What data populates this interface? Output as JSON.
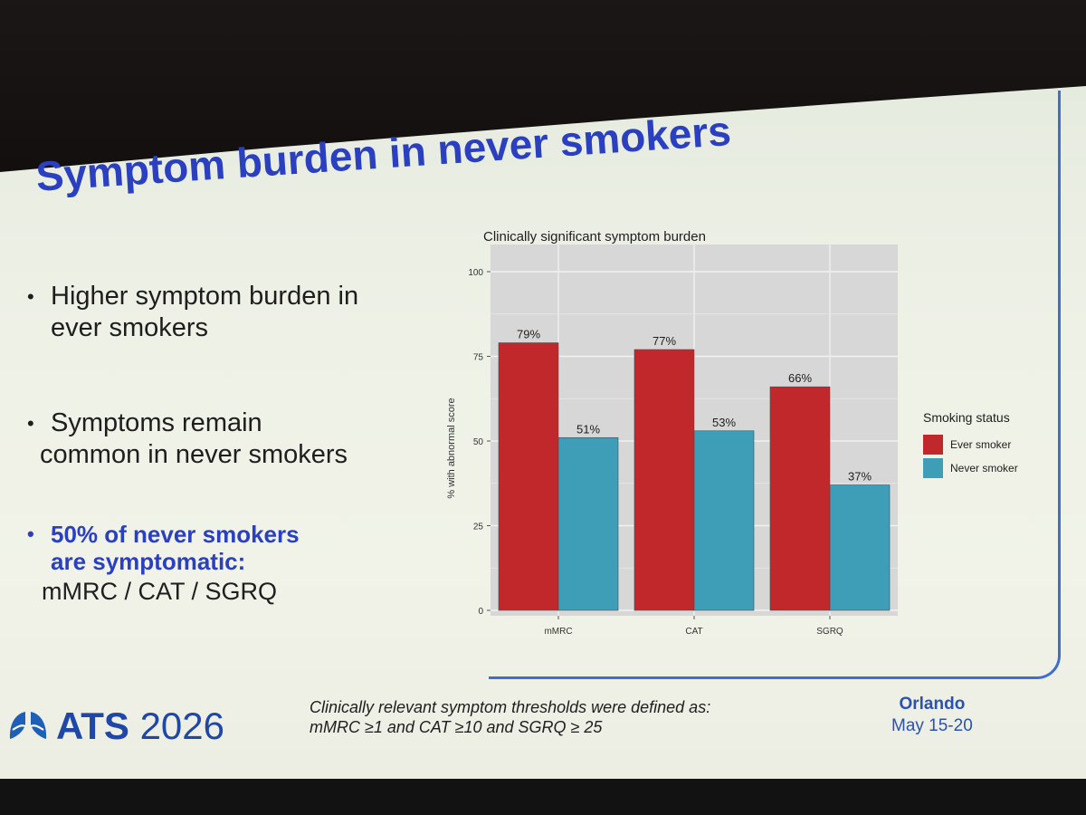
{
  "slide": {
    "title": "Symptom burden in never smokers",
    "bullets": [
      {
        "lines": [
          "Higher symptom burden in",
          "ever smokers"
        ]
      },
      {
        "lines": [
          "Symptoms remain",
          "common in never smokers"
        ]
      },
      {
        "lines": [
          "50% of never smokers",
          "are symptomatic:"
        ],
        "plain": "mMRC / CAT / SGRQ"
      }
    ]
  },
  "chart_data": {
    "type": "bar",
    "title": "Clinically significant symptom burden",
    "xlabel": "",
    "ylabel": "% with abnormal score",
    "categories": [
      "mMRC",
      "CAT",
      "SGRQ"
    ],
    "series": [
      {
        "name": "Ever smoker",
        "color": "#c0282b",
        "values": [
          79,
          77,
          66
        ],
        "labels": [
          "79%",
          "77%",
          "66%"
        ]
      },
      {
        "name": "Never smoker",
        "color": "#3e9eb8",
        "values": [
          51,
          53,
          37
        ],
        "labels": [
          "51%",
          "53%",
          "37%"
        ]
      }
    ],
    "ylim": [
      0,
      100
    ],
    "yticks": [
      0,
      25,
      50,
      75,
      100
    ],
    "grid": true,
    "legend_title": "Smoking status",
    "legend_position": "right"
  },
  "footer": {
    "brand_bold": "ATS",
    "brand_year": "2026",
    "note_line1": "Clinically relevant symptom thresholds were defined as:",
    "note_line2": "mMRC ≥1 and CAT ≥10 and SGRQ ≥ 25",
    "city": "Orlando",
    "dates": "May 15-20"
  }
}
